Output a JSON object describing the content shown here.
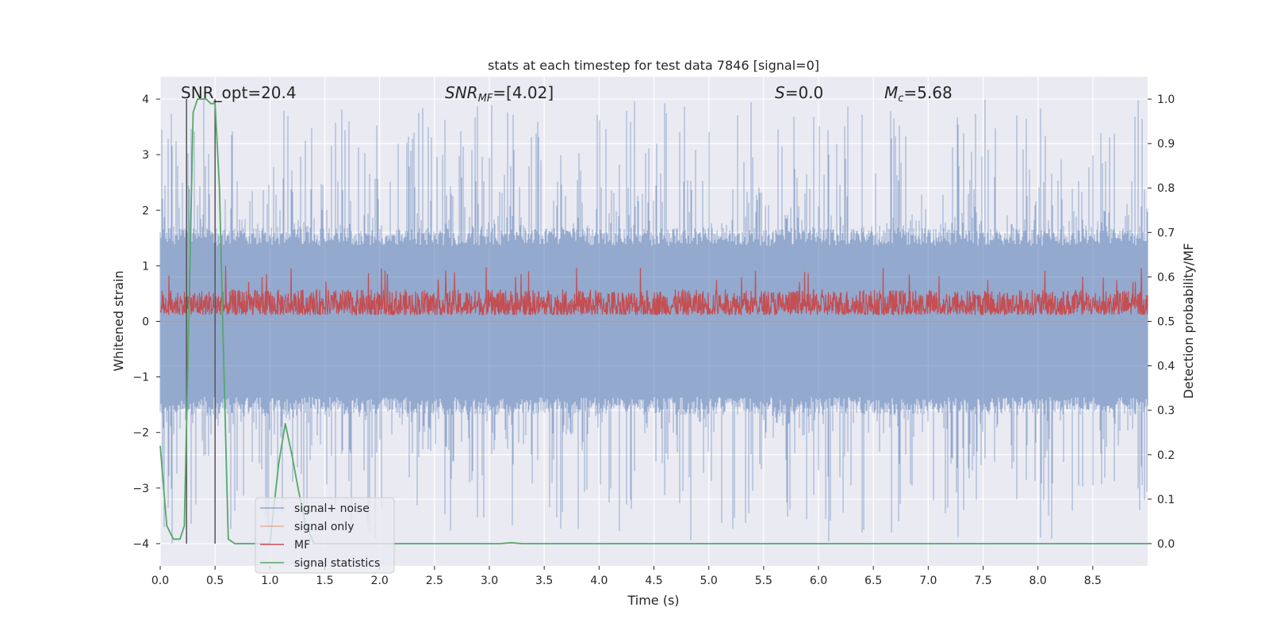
{
  "chart_data": {
    "type": "line",
    "title": "stats at each timestep for test data 7846 [signal=0]",
    "xlabel": "Time (s)",
    "ylabel_left": "Whitened strain",
    "ylabel_right": "Detection probability/MF",
    "xlim": [
      0.0,
      9.0
    ],
    "ylim_left": [
      -4.4,
      4.4
    ],
    "ylim_right": [
      -0.05,
      1.05
    ],
    "grid": true,
    "legend_position": "lower-left",
    "x_ticks": [
      "0.0",
      "0.5",
      "1.0",
      "1.5",
      "2.0",
      "2.5",
      "3.0",
      "3.5",
      "4.0",
      "4.5",
      "5.0",
      "5.5",
      "6.0",
      "6.5",
      "7.0",
      "7.5",
      "8.0",
      "8.5"
    ],
    "y_ticks_left": [
      "−4",
      "−3",
      "−2",
      "−1",
      "0",
      "1",
      "2",
      "3",
      "4"
    ],
    "y_ticks_right": [
      "0.0",
      "0.1",
      "0.2",
      "0.3",
      "0.4",
      "0.5",
      "0.6",
      "0.7",
      "0.8",
      "0.9",
      "1.0"
    ],
    "annotations": {
      "snr_opt": "SNR_opt=20.4",
      "snr_mf_base": "SNR",
      "snr_mf_sub": "MF",
      "snr_mf_value": "=[4.02]",
      "s_label": "S",
      "s_value": "=0.0",
      "mc_base": "M",
      "mc_sub": "c",
      "mc_value": "=5.68"
    },
    "vlines": [
      0.24,
      0.5
    ],
    "series": [
      {
        "name": "signal+ noise",
        "color": "#4c72b0",
        "axis": "left",
        "type": "noise",
        "envelope_upper": 1.6,
        "envelope_lower": -1.6,
        "max": 4.0,
        "min": -4.0
      },
      {
        "name": "signal only",
        "color": "#dd8452",
        "axis": "left",
        "x": [
          0.0,
          9.0
        ],
        "y": [
          0.0,
          0.0
        ]
      },
      {
        "name": "MF",
        "color": "#c44e52",
        "axis": "left",
        "type": "noise",
        "baseline": 0.0,
        "typical_max": 0.7,
        "max": 1.0
      },
      {
        "name": "signal statistics",
        "color": "#55a868",
        "axis": "right",
        "x": [
          0.0,
          0.06,
          0.12,
          0.18,
          0.22,
          0.26,
          0.3,
          0.34,
          0.38,
          0.42,
          0.46,
          0.5,
          0.54,
          0.58,
          0.62,
          0.68,
          0.8,
          0.9,
          1.0,
          1.08,
          1.14,
          1.2,
          1.26,
          1.32,
          1.4,
          1.6,
          2.5,
          3.0,
          3.1,
          3.2,
          3.3,
          4.0,
          9.0
        ],
        "y": [
          0.22,
          0.04,
          0.01,
          0.01,
          0.04,
          0.5,
          0.97,
          1.0,
          1.0,
          1.0,
          0.99,
          0.99,
          0.8,
          0.4,
          0.01,
          0.0,
          0.0,
          0.0,
          0.0,
          0.18,
          0.27,
          0.2,
          0.12,
          0.05,
          0.0,
          0.0,
          0.0,
          0.0,
          0.0,
          0.002,
          0.0,
          0.0,
          0.0
        ]
      }
    ]
  }
}
